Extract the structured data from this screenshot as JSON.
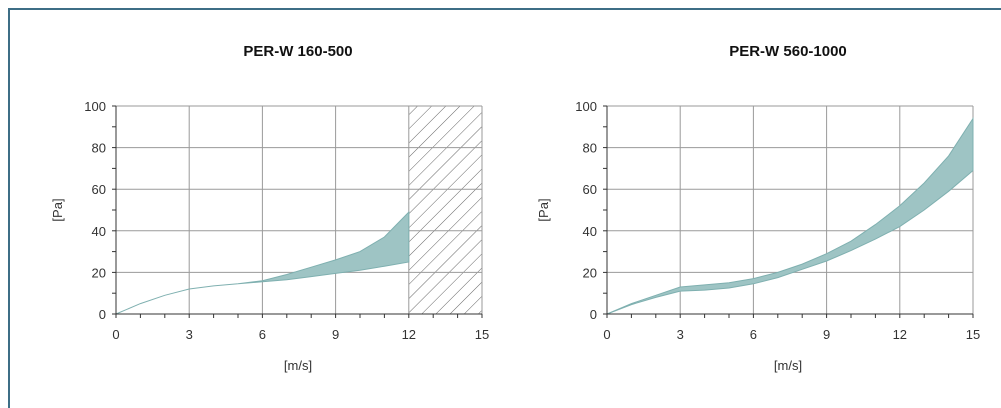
{
  "chart_data": [
    {
      "type": "area",
      "title": "PER-W 160-500",
      "xlabel": "[m/s]",
      "ylabel": "[Pa]",
      "xlim": [
        0,
        15
      ],
      "ylim": [
        0,
        100
      ],
      "xticks": [
        0,
        3,
        6,
        9,
        12,
        15
      ],
      "yticks": [
        0,
        20,
        40,
        60,
        80,
        100
      ],
      "grid": true,
      "band_color": "#9ec4c4",
      "x": [
        0,
        1,
        2,
        3,
        4,
        5,
        6,
        7,
        8,
        9,
        10,
        11,
        12
      ],
      "upper": [
        0,
        5,
        9,
        12,
        13.5,
        14.5,
        16,
        19,
        22.5,
        26,
        30,
        37,
        49
      ],
      "lower": [
        0,
        5,
        9,
        12,
        13.5,
        14.5,
        15.5,
        16.5,
        18,
        19.5,
        21,
        23,
        25
      ],
      "hatched_region": {
        "x_from": 12,
        "x_to": 15
      }
    },
    {
      "type": "area",
      "title": "PER-W 560-1000",
      "xlabel": "[m/s]",
      "ylabel": "[Pa]",
      "xlim": [
        0,
        15
      ],
      "ylim": [
        0,
        100
      ],
      "xticks": [
        0,
        3,
        6,
        9,
        12,
        15
      ],
      "yticks": [
        0,
        20,
        40,
        60,
        80,
        100
      ],
      "grid": true,
      "band_color": "#9ec4c4",
      "x": [
        0,
        1,
        2,
        3,
        4,
        5,
        6,
        7,
        8,
        9,
        10,
        11,
        12,
        13,
        14,
        15
      ],
      "upper": [
        0,
        5,
        9,
        13,
        14,
        15,
        17,
        20,
        24,
        29,
        35,
        43,
        52,
        63,
        76,
        94
      ],
      "lower": [
        0,
        4.5,
        8,
        11,
        11.5,
        12.5,
        14.5,
        17.5,
        21.5,
        25.5,
        30.5,
        36,
        42,
        50,
        59,
        69
      ]
    }
  ]
}
